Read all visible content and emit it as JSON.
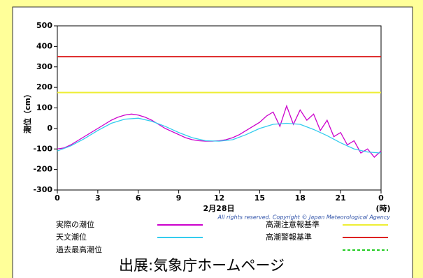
{
  "chart_data": {
    "type": "line",
    "y_label": "潮位（cm）",
    "x_label": "2月28日",
    "x_unit": "(時)",
    "copyright": "All rights reserved. Copyright © Japan Meteorological Agency",
    "caption": "出展:気象庁ホームページ",
    "xlim": [
      0,
      24
    ],
    "xticks": [
      0,
      3,
      6,
      9,
      12,
      15,
      18,
      21,
      {
        "value": 24,
        "label": "0"
      }
    ],
    "ylim": [
      -300,
      500
    ],
    "yticks": [
      -300,
      -200,
      -100,
      0,
      100,
      200,
      300,
      400,
      500
    ],
    "series": [
      {
        "name": "実際の潮位",
        "color": "#cc00cc",
        "x": [
          0,
          0.5,
          1,
          1.5,
          2,
          2.5,
          3,
          3.5,
          4,
          4.5,
          5,
          5.5,
          6,
          6.5,
          7,
          7.5,
          8,
          8.5,
          9,
          9.5,
          10,
          10.5,
          11,
          11.5,
          12,
          12.5,
          13,
          13.5,
          14,
          14.5,
          15,
          15.5,
          16,
          16.5,
          17,
          17.5,
          18,
          18.5,
          19,
          19.5,
          20,
          20.5,
          21,
          21.5,
          22,
          22.5,
          23,
          23.5,
          24
        ],
        "values": [
          -100,
          -95,
          -80,
          -60,
          -40,
          -20,
          0,
          20,
          40,
          55,
          65,
          70,
          65,
          55,
          40,
          20,
          0,
          -15,
          -30,
          -45,
          -55,
          -60,
          -62,
          -62,
          -60,
          -55,
          -45,
          -30,
          -10,
          10,
          30,
          60,
          80,
          10,
          110,
          20,
          90,
          40,
          70,
          -10,
          40,
          -40,
          -20,
          -80,
          -60,
          -120,
          -100,
          -140,
          -110
        ]
      },
      {
        "name": "天文潮位",
        "color": "#33ccee",
        "x": [
          0,
          1,
          2,
          3,
          4,
          5,
          6,
          7,
          8,
          9,
          10,
          11,
          12,
          13,
          14,
          15,
          16,
          17,
          18,
          19,
          20,
          21,
          22,
          23,
          24
        ],
        "values": [
          -110,
          -85,
          -50,
          -10,
          25,
          45,
          50,
          35,
          10,
          -20,
          -45,
          -60,
          -62,
          -55,
          -30,
          0,
          20,
          25,
          20,
          -5,
          -35,
          -70,
          -100,
          -115,
          -120
        ]
      }
    ],
    "hlines": [
      {
        "name": "高潮注意報基準",
        "color": "#eeee33",
        "value": 175
      },
      {
        "name": "高潮警報基準",
        "color": "#dd2222",
        "value": 350
      }
    ],
    "legend_only": [
      {
        "name": "過去最高潮位",
        "color": "#22cc22",
        "dash": true
      }
    ]
  }
}
